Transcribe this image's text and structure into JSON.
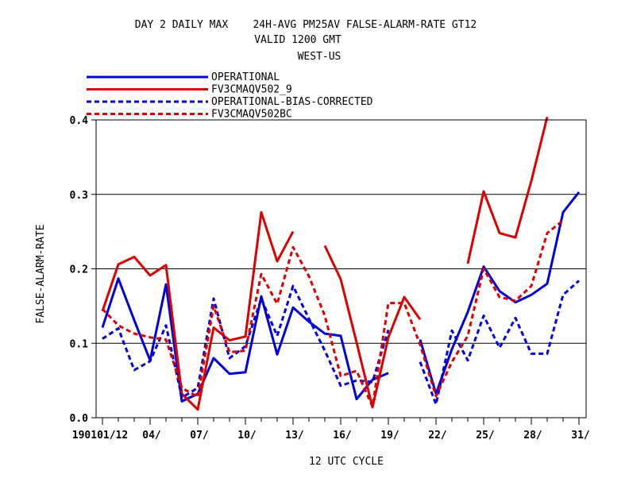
{
  "chart_data": {
    "type": "line",
    "title": [
      "DAY 2 DAILY MAX    24H-AVG PM25AV FALSE-ALARM-RATE GT12",
      "VALID 1200 GMT",
      "WEST-US"
    ],
    "xlabel": "12 UTC CYCLE",
    "ylabel": "FALSE-ALARM-RATE",
    "ylim": [
      0,
      0.4
    ],
    "yticks": [
      "0.0",
      "0.1",
      "0.2",
      "0.3",
      "0.4"
    ],
    "xlim": [
      1,
      31
    ],
    "xticks": [
      {
        "day": 1,
        "label": "190101/12"
      },
      {
        "day": 4,
        "label": "04/"
      },
      {
        "day": 7,
        "label": "07/"
      },
      {
        "day": 10,
        "label": "10/"
      },
      {
        "day": 13,
        "label": "13/"
      },
      {
        "day": 16,
        "label": "16/"
      },
      {
        "day": 19,
        "label": "19/"
      },
      {
        "day": 22,
        "label": "22/"
      },
      {
        "day": 25,
        "label": "25/"
      },
      {
        "day": 28,
        "label": "28/"
      },
      {
        "day": 31,
        "label": "31/"
      }
    ],
    "grid": "horizontal",
    "legend_position": "top-left",
    "x": [
      1,
      2,
      3,
      4,
      5,
      6,
      7,
      8,
      9,
      10,
      11,
      12,
      13,
      14,
      15,
      16,
      17,
      18,
      19,
      20,
      21,
      22,
      23,
      24,
      25,
      26,
      27,
      28,
      29,
      30,
      31
    ],
    "series": [
      {
        "name": "OPERATIONAL",
        "color": "#0000dd",
        "dash": "solid",
        "values": [
          0.121,
          0.187,
          0.131,
          0.077,
          0.179,
          0.022,
          0.032,
          0.08,
          0.059,
          0.061,
          0.163,
          0.085,
          0.148,
          0.129,
          0.113,
          0.11,
          0.025,
          0.051,
          0.06,
          null,
          0.105,
          0.032,
          0.092,
          0.142,
          0.203,
          0.17,
          0.155,
          0.165,
          0.18,
          0.276,
          0.303
        ]
      },
      {
        "name": "FV3CMAQV502_9",
        "color": "#dd0000",
        "dash": "solid",
        "values": [
          0.143,
          0.206,
          0.216,
          0.191,
          0.205,
          0.032,
          0.011,
          0.121,
          0.104,
          0.109,
          0.276,
          0.21,
          0.25,
          null,
          0.231,
          0.186,
          0.101,
          0.014,
          0.108,
          0.162,
          0.132,
          null,
          null,
          0.207,
          0.304,
          0.248,
          0.242,
          0.318,
          0.404,
          null,
          null
        ]
      },
      {
        "name": "OPERATIONAL-BIAS-CORRECTED",
        "color": "#0000dd",
        "dash": "dashed",
        "values": [
          0.106,
          0.12,
          0.064,
          0.076,
          0.124,
          0.027,
          0.04,
          0.16,
          0.08,
          0.096,
          0.16,
          0.11,
          0.177,
          0.133,
          0.09,
          0.043,
          0.05,
          0.048,
          0.118,
          null,
          0.075,
          0.018,
          0.117,
          0.077,
          0.137,
          0.094,
          0.134,
          0.086,
          0.086,
          0.165,
          0.184
        ]
      },
      {
        "name": "FV3CMAQV502BC",
        "color": "#dd0000",
        "dash": "dashed",
        "values": [
          0.146,
          0.124,
          0.113,
          0.108,
          0.105,
          0.04,
          0.028,
          0.15,
          0.088,
          0.09,
          0.193,
          0.153,
          0.229,
          0.19,
          0.137,
          0.056,
          0.063,
          0.015,
          0.154,
          0.154,
          0.098,
          0.029,
          0.075,
          0.11,
          0.2,
          0.162,
          0.157,
          0.177,
          0.248,
          0.265,
          null
        ]
      }
    ]
  }
}
